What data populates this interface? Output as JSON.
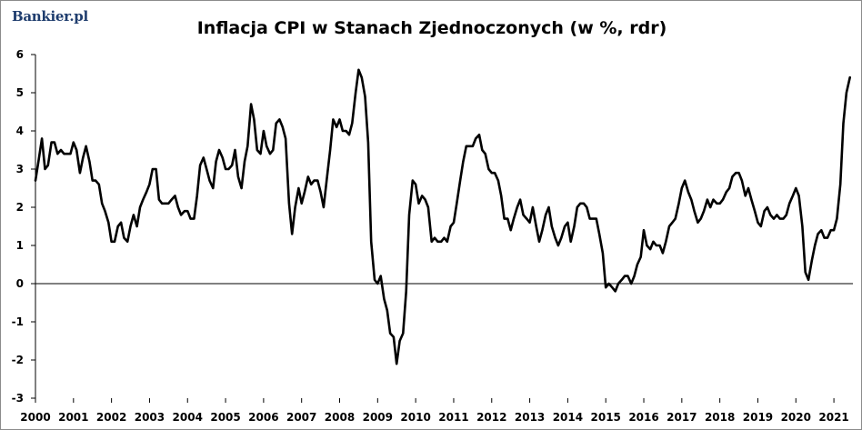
{
  "brand": "Bankier.pl",
  "chart_data": {
    "type": "line",
    "title": "Inflacja CPI w Stanach Zjednoczonych  (w %, rdr)",
    "xlabel": "",
    "ylabel": "",
    "xlim": [
      2000,
      2021.5
    ],
    "ylim": [
      -3,
      6
    ],
    "yticks": [
      -3,
      -2,
      -1,
      0,
      1,
      2,
      3,
      4,
      5,
      6
    ],
    "xticks": [
      "2000",
      "2001",
      "2002",
      "2003",
      "2004",
      "2005",
      "2006",
      "2007",
      "2008",
      "2009",
      "2010",
      "2011",
      "2012",
      "2013",
      "2014",
      "2015",
      "2016",
      "2017",
      "2018",
      "2019",
      "2020",
      "2021"
    ],
    "grid": false,
    "line_color": "#000000",
    "series": [
      {
        "points": [
          [
            2000.0,
            2.7
          ],
          [
            2000.08,
            3.2
          ],
          [
            2000.17,
            3.8
          ],
          [
            2000.25,
            3.0
          ],
          [
            2000.33,
            3.1
          ],
          [
            2000.42,
            3.7
          ],
          [
            2000.5,
            3.7
          ],
          [
            2000.58,
            3.4
          ],
          [
            2000.67,
            3.5
          ],
          [
            2000.75,
            3.4
          ],
          [
            2000.83,
            3.4
          ],
          [
            2000.92,
            3.4
          ],
          [
            2001.0,
            3.7
          ],
          [
            2001.08,
            3.5
          ],
          [
            2001.17,
            2.9
          ],
          [
            2001.25,
            3.3
          ],
          [
            2001.33,
            3.6
          ],
          [
            2001.42,
            3.2
          ],
          [
            2001.5,
            2.7
          ],
          [
            2001.58,
            2.7
          ],
          [
            2001.67,
            2.6
          ],
          [
            2001.75,
            2.1
          ],
          [
            2001.83,
            1.9
          ],
          [
            2001.92,
            1.6
          ],
          [
            2002.0,
            1.1
          ],
          [
            2002.08,
            1.1
          ],
          [
            2002.17,
            1.5
          ],
          [
            2002.25,
            1.6
          ],
          [
            2002.33,
            1.2
          ],
          [
            2002.42,
            1.1
          ],
          [
            2002.5,
            1.5
          ],
          [
            2002.58,
            1.8
          ],
          [
            2002.67,
            1.5
          ],
          [
            2002.75,
            2.0
          ],
          [
            2002.83,
            2.2
          ],
          [
            2002.92,
            2.4
          ],
          [
            2003.0,
            2.6
          ],
          [
            2003.08,
            3.0
          ],
          [
            2003.17,
            3.0
          ],
          [
            2003.25,
            2.2
          ],
          [
            2003.33,
            2.1
          ],
          [
            2003.42,
            2.1
          ],
          [
            2003.5,
            2.1
          ],
          [
            2003.58,
            2.2
          ],
          [
            2003.67,
            2.3
          ],
          [
            2003.75,
            2.0
          ],
          [
            2003.83,
            1.8
          ],
          [
            2003.92,
            1.9
          ],
          [
            2004.0,
            1.9
          ],
          [
            2004.08,
            1.7
          ],
          [
            2004.17,
            1.7
          ],
          [
            2004.25,
            2.3
          ],
          [
            2004.33,
            3.1
          ],
          [
            2004.42,
            3.3
          ],
          [
            2004.5,
            3.0
          ],
          [
            2004.58,
            2.7
          ],
          [
            2004.67,
            2.5
          ],
          [
            2004.75,
            3.2
          ],
          [
            2004.83,
            3.5
          ],
          [
            2004.92,
            3.3
          ],
          [
            2005.0,
            3.0
          ],
          [
            2005.08,
            3.0
          ],
          [
            2005.17,
            3.1
          ],
          [
            2005.25,
            3.5
          ],
          [
            2005.33,
            2.8
          ],
          [
            2005.42,
            2.5
          ],
          [
            2005.5,
            3.2
          ],
          [
            2005.58,
            3.6
          ],
          [
            2005.67,
            4.7
          ],
          [
            2005.75,
            4.3
          ],
          [
            2005.83,
            3.5
          ],
          [
            2005.92,
            3.4
          ],
          [
            2006.0,
            4.0
          ],
          [
            2006.08,
            3.6
          ],
          [
            2006.17,
            3.4
          ],
          [
            2006.25,
            3.5
          ],
          [
            2006.33,
            4.2
          ],
          [
            2006.42,
            4.3
          ],
          [
            2006.5,
            4.1
          ],
          [
            2006.58,
            3.8
          ],
          [
            2006.67,
            2.1
          ],
          [
            2006.75,
            1.3
          ],
          [
            2006.83,
            2.0
          ],
          [
            2006.92,
            2.5
          ],
          [
            2007.0,
            2.1
          ],
          [
            2007.08,
            2.4
          ],
          [
            2007.17,
            2.8
          ],
          [
            2007.25,
            2.6
          ],
          [
            2007.33,
            2.7
          ],
          [
            2007.42,
            2.7
          ],
          [
            2007.5,
            2.4
          ],
          [
            2007.58,
            2.0
          ],
          [
            2007.67,
            2.8
          ],
          [
            2007.75,
            3.5
          ],
          [
            2007.83,
            4.3
          ],
          [
            2007.92,
            4.1
          ],
          [
            2008.0,
            4.3
          ],
          [
            2008.08,
            4.0
          ],
          [
            2008.17,
            4.0
          ],
          [
            2008.25,
            3.9
          ],
          [
            2008.33,
            4.2
          ],
          [
            2008.42,
            5.0
          ],
          [
            2008.5,
            5.6
          ],
          [
            2008.58,
            5.4
          ],
          [
            2008.67,
            4.9
          ],
          [
            2008.75,
            3.7
          ],
          [
            2008.83,
            1.1
          ],
          [
            2008.92,
            0.1
          ],
          [
            2009.0,
            0.0
          ],
          [
            2009.08,
            0.2
          ],
          [
            2009.17,
            -0.4
          ],
          [
            2009.25,
            -0.7
          ],
          [
            2009.33,
            -1.3
          ],
          [
            2009.42,
            -1.4
          ],
          [
            2009.5,
            -2.1
          ],
          [
            2009.58,
            -1.5
          ],
          [
            2009.67,
            -1.3
          ],
          [
            2009.75,
            -0.2
          ],
          [
            2009.83,
            1.8
          ],
          [
            2009.92,
            2.7
          ],
          [
            2010.0,
            2.6
          ],
          [
            2010.08,
            2.1
          ],
          [
            2010.17,
            2.3
          ],
          [
            2010.25,
            2.2
          ],
          [
            2010.33,
            2.0
          ],
          [
            2010.42,
            1.1
          ],
          [
            2010.5,
            1.2
          ],
          [
            2010.58,
            1.1
          ],
          [
            2010.67,
            1.1
          ],
          [
            2010.75,
            1.2
          ],
          [
            2010.83,
            1.1
          ],
          [
            2010.92,
            1.5
          ],
          [
            2011.0,
            1.6
          ],
          [
            2011.08,
            2.1
          ],
          [
            2011.17,
            2.7
          ],
          [
            2011.25,
            3.2
          ],
          [
            2011.33,
            3.6
          ],
          [
            2011.42,
            3.6
          ],
          [
            2011.5,
            3.6
          ],
          [
            2011.58,
            3.8
          ],
          [
            2011.67,
            3.9
          ],
          [
            2011.75,
            3.5
          ],
          [
            2011.83,
            3.4
          ],
          [
            2011.92,
            3.0
          ],
          [
            2012.0,
            2.9
          ],
          [
            2012.08,
            2.9
          ],
          [
            2012.17,
            2.7
          ],
          [
            2012.25,
            2.3
          ],
          [
            2012.33,
            1.7
          ],
          [
            2012.42,
            1.7
          ],
          [
            2012.5,
            1.4
          ],
          [
            2012.58,
            1.7
          ],
          [
            2012.67,
            2.0
          ],
          [
            2012.75,
            2.2
          ],
          [
            2012.83,
            1.8
          ],
          [
            2012.92,
            1.7
          ],
          [
            2013.0,
            1.6
          ],
          [
            2013.08,
            2.0
          ],
          [
            2013.17,
            1.5
          ],
          [
            2013.25,
            1.1
          ],
          [
            2013.33,
            1.4
          ],
          [
            2013.42,
            1.8
          ],
          [
            2013.5,
            2.0
          ],
          [
            2013.58,
            1.5
          ],
          [
            2013.67,
            1.2
          ],
          [
            2013.75,
            1.0
          ],
          [
            2013.83,
            1.2
          ],
          [
            2013.92,
            1.5
          ],
          [
            2014.0,
            1.6
          ],
          [
            2014.08,
            1.1
          ],
          [
            2014.17,
            1.5
          ],
          [
            2014.25,
            2.0
          ],
          [
            2014.33,
            2.1
          ],
          [
            2014.42,
            2.1
          ],
          [
            2014.5,
            2.0
          ],
          [
            2014.58,
            1.7
          ],
          [
            2014.67,
            1.7
          ],
          [
            2014.75,
            1.7
          ],
          [
            2014.83,
            1.3
          ],
          [
            2014.92,
            0.8
          ],
          [
            2015.0,
            -0.1
          ],
          [
            2015.08,
            0.0
          ],
          [
            2015.17,
            -0.1
          ],
          [
            2015.25,
            -0.2
          ],
          [
            2015.33,
            0.0
          ],
          [
            2015.42,
            0.1
          ],
          [
            2015.5,
            0.2
          ],
          [
            2015.58,
            0.2
          ],
          [
            2015.67,
            0.0
          ],
          [
            2015.75,
            0.2
          ],
          [
            2015.83,
            0.5
          ],
          [
            2015.92,
            0.7
          ],
          [
            2016.0,
            1.4
          ],
          [
            2016.08,
            1.0
          ],
          [
            2016.17,
            0.9
          ],
          [
            2016.25,
            1.1
          ],
          [
            2016.33,
            1.0
          ],
          [
            2016.42,
            1.0
          ],
          [
            2016.5,
            0.8
          ],
          [
            2016.58,
            1.1
          ],
          [
            2016.67,
            1.5
          ],
          [
            2016.75,
            1.6
          ],
          [
            2016.83,
            1.7
          ],
          [
            2016.92,
            2.1
          ],
          [
            2017.0,
            2.5
          ],
          [
            2017.08,
            2.7
          ],
          [
            2017.17,
            2.4
          ],
          [
            2017.25,
            2.2
          ],
          [
            2017.33,
            1.9
          ],
          [
            2017.42,
            1.6
          ],
          [
            2017.5,
            1.7
          ],
          [
            2017.58,
            1.9
          ],
          [
            2017.67,
            2.2
          ],
          [
            2017.75,
            2.0
          ],
          [
            2017.83,
            2.2
          ],
          [
            2017.92,
            2.1
          ],
          [
            2018.0,
            2.1
          ],
          [
            2018.08,
            2.2
          ],
          [
            2018.17,
            2.4
          ],
          [
            2018.25,
            2.5
          ],
          [
            2018.33,
            2.8
          ],
          [
            2018.42,
            2.9
          ],
          [
            2018.5,
            2.9
          ],
          [
            2018.58,
            2.7
          ],
          [
            2018.67,
            2.3
          ],
          [
            2018.75,
            2.5
          ],
          [
            2018.83,
            2.2
          ],
          [
            2018.92,
            1.9
          ],
          [
            2019.0,
            1.6
          ],
          [
            2019.08,
            1.5
          ],
          [
            2019.17,
            1.9
          ],
          [
            2019.25,
            2.0
          ],
          [
            2019.33,
            1.8
          ],
          [
            2019.42,
            1.7
          ],
          [
            2019.5,
            1.8
          ],
          [
            2019.58,
            1.7
          ],
          [
            2019.67,
            1.7
          ],
          [
            2019.75,
            1.8
          ],
          [
            2019.83,
            2.1
          ],
          [
            2019.92,
            2.3
          ],
          [
            2020.0,
            2.5
          ],
          [
            2020.08,
            2.3
          ],
          [
            2020.17,
            1.5
          ],
          [
            2020.25,
            0.3
          ],
          [
            2020.33,
            0.1
          ],
          [
            2020.42,
            0.6
          ],
          [
            2020.5,
            1.0
          ],
          [
            2020.58,
            1.3
          ],
          [
            2020.67,
            1.4
          ],
          [
            2020.75,
            1.2
          ],
          [
            2020.83,
            1.2
          ],
          [
            2020.92,
            1.4
          ],
          [
            2021.0,
            1.4
          ],
          [
            2021.08,
            1.7
          ],
          [
            2021.17,
            2.6
          ],
          [
            2021.25,
            4.2
          ],
          [
            2021.33,
            5.0
          ],
          [
            2021.42,
            5.4
          ]
        ]
      }
    ]
  }
}
